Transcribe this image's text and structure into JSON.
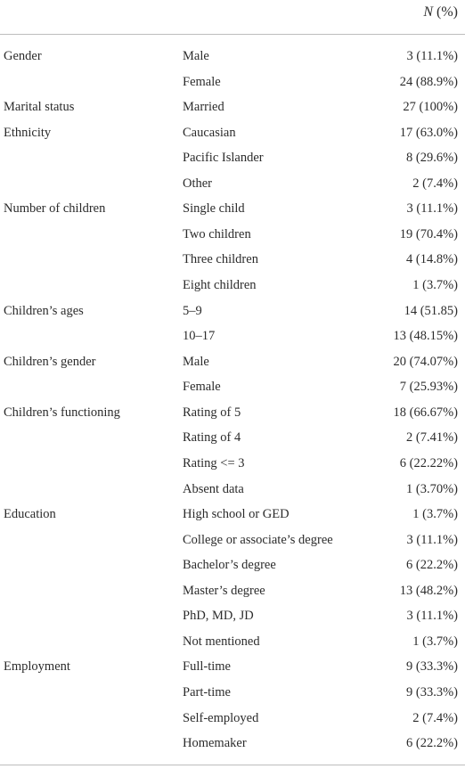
{
  "header": {
    "symbol": "N",
    "unit": "(%)"
  },
  "groups": [
    {
      "label": "Gender",
      "rows": [
        [
          "Male",
          "3 (11.1%)"
        ],
        [
          "Female",
          "24 (88.9%)"
        ]
      ]
    },
    {
      "label": "Marital status",
      "rows": [
        [
          "Married",
          "27 (100%)"
        ]
      ]
    },
    {
      "label": "Ethnicity",
      "rows": [
        [
          "Caucasian",
          "17 (63.0%)"
        ],
        [
          "Pacific Islander",
          "8 (29.6%)"
        ],
        [
          "Other",
          "2 (7.4%)"
        ]
      ]
    },
    {
      "label": "Number of children",
      "rows": [
        [
          "Single child",
          "3 (11.1%)"
        ],
        [
          "Two children",
          "19 (70.4%)"
        ],
        [
          "Three children",
          "4 (14.8%)"
        ],
        [
          "Eight children",
          "1 (3.7%)"
        ]
      ]
    },
    {
      "label": "Children’s ages",
      "rows": [
        [
          "5–9",
          "14 (51.85)"
        ],
        [
          "10–17",
          "13 (48.15%)"
        ]
      ]
    },
    {
      "label": "Children’s gender",
      "rows": [
        [
          "Male",
          "20 (74.07%)"
        ],
        [
          "Female",
          "7 (25.93%)"
        ]
      ]
    },
    {
      "label": "Children’s functioning",
      "rows": [
        [
          "Rating of 5",
          "18 (66.67%)"
        ],
        [
          "Rating of 4",
          "2 (7.41%)"
        ],
        [
          "Rating <= 3",
          "6 (22.22%)"
        ],
        [
          "Absent data",
          "1 (3.70%)"
        ]
      ]
    },
    {
      "label": "Education",
      "rows": [
        [
          "High school or GED",
          "1 (3.7%)"
        ],
        [
          "College or associate’s degree",
          "3 (11.1%)"
        ],
        [
          "Bachelor’s degree",
          "6 (22.2%)"
        ],
        [
          "Master’s degree",
          "13 (48.2%)"
        ],
        [
          "PhD, MD, JD",
          "3 (11.1%)"
        ],
        [
          "Not mentioned",
          "1 (3.7%)"
        ]
      ]
    },
    {
      "label": "Employment",
      "rows": [
        [
          "Full-time",
          "9 (33.3%)"
        ],
        [
          "Part-time",
          "9 (33.3%)"
        ],
        [
          "Self-employed",
          "2 (7.4%)"
        ],
        [
          "Homemaker",
          "6 (22.2%)"
        ]
      ]
    }
  ]
}
